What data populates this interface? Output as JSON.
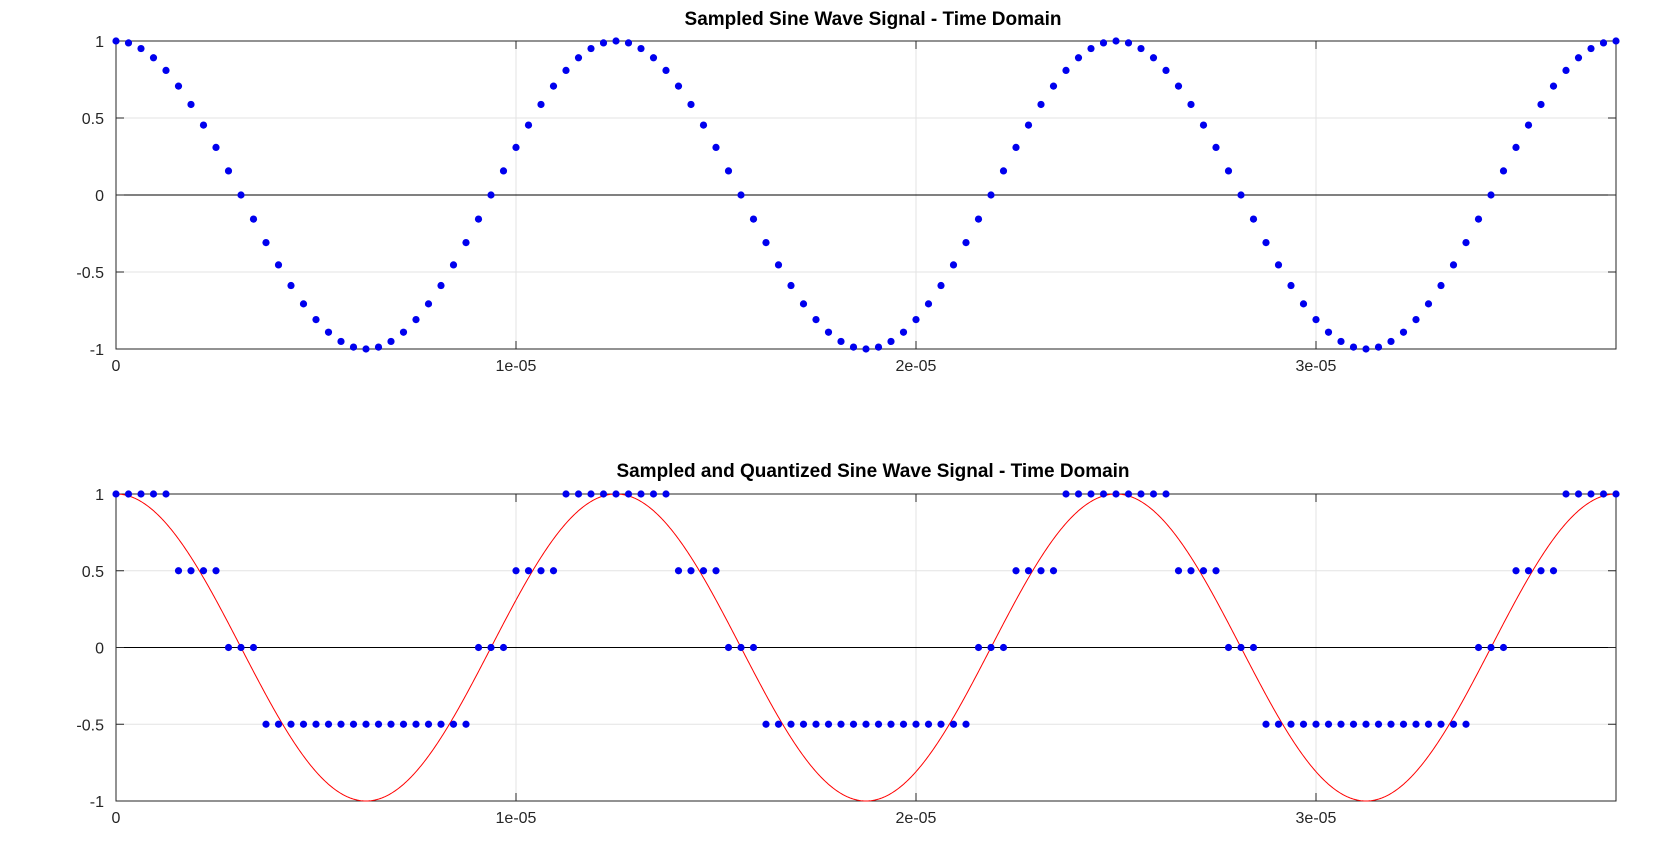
{
  "chart_data": [
    {
      "type": "scatter",
      "title": "Sampled Sine Wave Signal - Time Domain",
      "xlabel": "",
      "ylabel": "",
      "xlim": [
        0,
        3.75e-05
      ],
      "ylim": [
        -1,
        1
      ],
      "xticks": [
        0,
        1e-05,
        2e-05,
        3e-05
      ],
      "xtick_labels": [
        "0",
        "1e-05",
        "2e-05",
        "3e-05"
      ],
      "yticks": [
        -1,
        -0.5,
        0,
        0.5,
        1
      ],
      "ytick_labels": [
        "-1",
        "-0.5",
        "0",
        "0.5",
        "1"
      ],
      "grid": true,
      "zero_line": true,
      "signal": {
        "function": "cos",
        "amplitude": 1,
        "frequency_hz": 80000
      },
      "samples": {
        "x_start": 0,
        "x_step": 3.125e-07,
        "count": 121
      },
      "colors": {
        "marker": "#0000ee"
      }
    },
    {
      "type": "scatter",
      "title": "Sampled and Quantized Sine Wave Signal - Time Domain",
      "xlabel": "",
      "ylabel": "",
      "xlim": [
        0,
        3.75e-05
      ],
      "ylim": [
        -1,
        1
      ],
      "xticks": [
        0,
        1e-05,
        2e-05,
        3e-05
      ],
      "xtick_labels": [
        "0",
        "1e-05",
        "2e-05",
        "3e-05"
      ],
      "yticks": [
        -1,
        -0.5,
        0,
        0.5,
        1
      ],
      "ytick_labels": [
        "-1",
        "-0.5",
        "0",
        "0.5",
        "1"
      ],
      "grid": true,
      "zero_line": true,
      "signal": {
        "function": "cos",
        "amplitude": 1,
        "frequency_hz": 80000
      },
      "samples": {
        "x_start": 0,
        "x_step": 3.125e-07,
        "count": 121
      },
      "quantization_levels": [
        -0.5,
        0,
        0.5,
        1
      ],
      "colors": {
        "marker": "#0000ee",
        "curve": "#ff0000"
      }
    }
  ]
}
